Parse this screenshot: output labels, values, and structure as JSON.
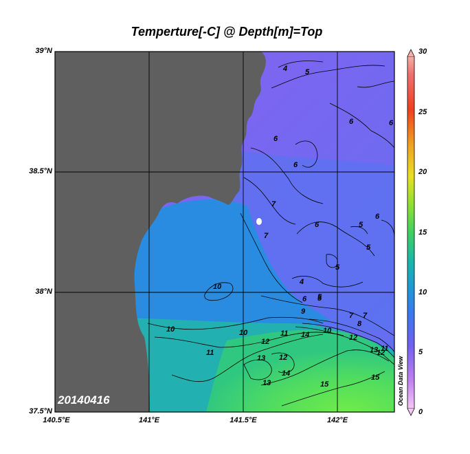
{
  "title": "Temperture[-C] @ Depth[m]=Top",
  "date_stamp": "20140416",
  "watermark": "Ocean Data View",
  "axes": {
    "lat_labels": [
      "39°N",
      "38.5°N",
      "38°N",
      "37.5°N"
    ],
    "lon_labels": [
      "140.5°E",
      "141°E",
      "141.5°E",
      "142°E"
    ]
  },
  "colorbar": {
    "ticks": [
      "30",
      "25",
      "20",
      "15",
      "10",
      "5",
      "0"
    ],
    "range": [
      0,
      30
    ],
    "colors": [
      "#f4c8f4",
      "#b070f0",
      "#5a6cf0",
      "#1e8ee0",
      "#18b0a8",
      "#40d060",
      "#98e030",
      "#e8e020",
      "#f0a020",
      "#f04020",
      "#f4a0a0"
    ]
  },
  "map": {
    "land_color": "#606060",
    "contour_labels": [
      "4",
      "5",
      "6",
      "6",
      "6",
      "6",
      "7",
      "7",
      "6",
      "5",
      "5",
      "5",
      "4",
      "6",
      "5",
      "7",
      "10",
      "10",
      "10",
      "11",
      "13",
      "12",
      "12",
      "11",
      "10",
      "14",
      "12",
      "13",
      "14",
      "15",
      "15",
      "13",
      "12",
      "11",
      "9",
      "8",
      "7",
      "6",
      "5"
    ]
  },
  "chart_data": {
    "type": "heatmap",
    "title": "Temperture[-C] @ Depth[m]=Top",
    "xlabel": "",
    "ylabel": "",
    "xlim": [
      140.5,
      142.3
    ],
    "ylim": [
      37.5,
      39.0
    ],
    "x_ticks": [
      140.5,
      141.0,
      141.5,
      142.0
    ],
    "y_ticks": [
      37.5,
      38.0,
      38.5,
      39.0
    ],
    "colorbar_range": [
      0,
      30
    ],
    "variable": "Temperture[-C]",
    "depth": "Top",
    "grid": true,
    "contours": [
      {
        "level": 4,
        "label_pos": [
          141.72,
          38.93
        ]
      },
      {
        "level": 5,
        "label_pos": [
          141.84,
          38.93
        ]
      },
      {
        "level": 6,
        "label_pos": [
          141.65,
          38.62
        ]
      },
      {
        "level": 6,
        "label_pos": [
          141.62,
          38.57
        ]
      },
      {
        "level": 6,
        "label_pos": [
          141.78,
          38.53
        ]
      },
      {
        "level": 7,
        "label_pos": [
          141.64,
          38.36
        ]
      },
      {
        "level": 7,
        "label_pos": [
          141.62,
          38.22
        ]
      },
      {
        "level": 5,
        "label_pos": [
          142.1,
          38.26
        ]
      },
      {
        "level": 10,
        "label_pos": [
          141.35,
          38.03
        ]
      },
      {
        "level": 10,
        "label_pos": [
          141.1,
          37.85
        ]
      },
      {
        "level": 12,
        "label_pos": [
          141.58,
          37.8
        ]
      },
      {
        "level": 13,
        "label_pos": [
          141.5,
          37.7
        ]
      },
      {
        "level": 14,
        "label_pos": [
          141.72,
          37.66
        ]
      },
      {
        "level": 15,
        "label_pos": [
          142.2,
          37.64
        ]
      },
      {
        "level": 15,
        "label_pos": [
          141.9,
          37.63
        ]
      }
    ]
  }
}
